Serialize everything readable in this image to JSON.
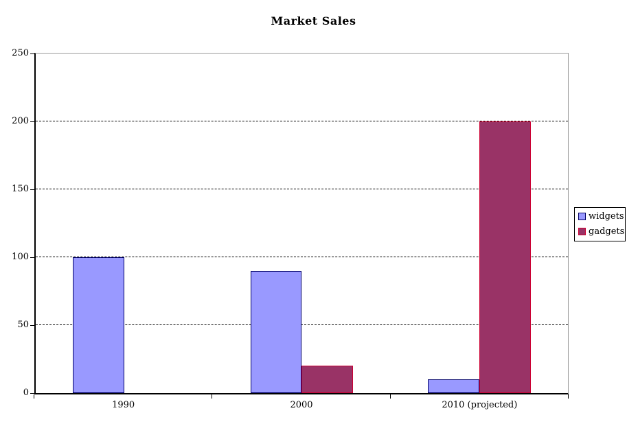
{
  "chart_data": {
    "type": "bar",
    "title": "Market Sales",
    "categories": [
      "1990",
      "2000",
      "2010 (projected)"
    ],
    "series": [
      {
        "name": "widgets",
        "values": [
          100,
          90,
          10
        ],
        "fill": "#9999ff",
        "border": "#000066"
      },
      {
        "name": "gadgets",
        "values": [
          0,
          20,
          200
        ],
        "fill": "#993366",
        "border": "#cc0033"
      }
    ],
    "ylim": [
      0,
      250
    ],
    "ytick_step": 50,
    "yticks": [
      0,
      50,
      100,
      150,
      200,
      250
    ],
    "grid": "horizontal-dashed",
    "legend_position": "right",
    "xlabel": "",
    "ylabel": ""
  },
  "colors": {
    "background": "#ffffff",
    "plot_background": "#ffffff",
    "plot_frame": "#9a9a9a",
    "axis": "#000000",
    "gridline": "#000000",
    "legend_border": "#000000"
  }
}
